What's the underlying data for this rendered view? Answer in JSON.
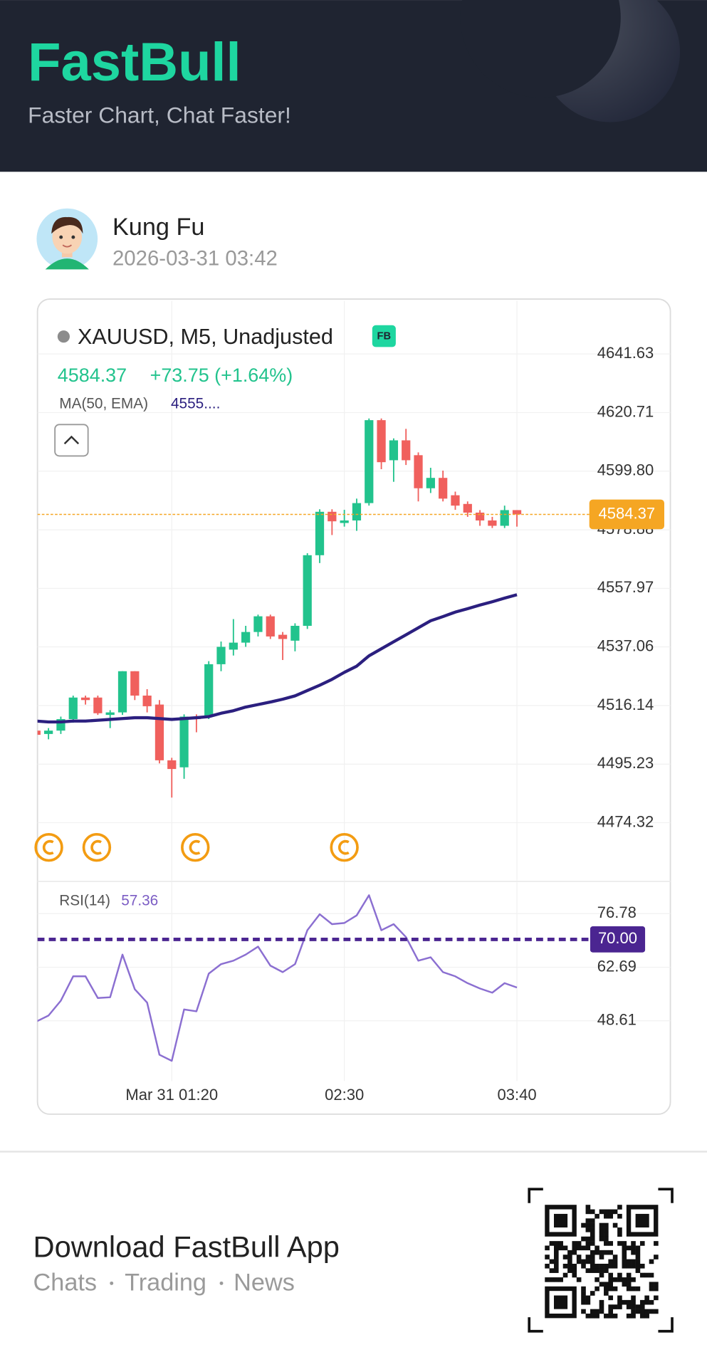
{
  "header": {
    "brand": "FastBull",
    "tagline": "Faster Chart, Chat Faster!"
  },
  "post": {
    "author": "Kung Fu",
    "time": "2026-03-31 03:42"
  },
  "chart_data": [
    {
      "type": "candlestick",
      "title": "XAUUSD, M5, Unadjusted",
      "badge": "FB",
      "last_price": 4584.37,
      "change": "+73.75 (+1.64%)",
      "up_color": "#22c38d",
      "down_color": "#f0605d",
      "price_line_color": "#f5a623",
      "open": [
        4507.2,
        4506.0,
        4507.2,
        4511.3,
        4519.0,
        4519.0,
        4512.8,
        4513.7,
        4528.4,
        4519.7,
        4516.5,
        4496.6,
        4494.1,
        4512.2,
        4512.2,
        4530.9,
        4536.1,
        4538.6,
        4542.4,
        4548.0,
        4541.4,
        4539.3,
        4544.6,
        4569.8,
        4585.3,
        4581.3,
        4582.2,
        4588.4,
        4618.0,
        4603.7,
        4610.8,
        4605.5,
        4593.7,
        4597.4,
        4591.2,
        4588.1,
        4585.0,
        4582.2,
        4580.3,
        4585.9
      ],
      "high": [
        4508.1,
        4508.1,
        4512.2,
        4519.7,
        4519.7,
        4519.7,
        4514.5,
        4528.4,
        4528.4,
        4522.0,
        4518.1,
        4497.5,
        4513.0,
        4513.0,
        4532.0,
        4539.0,
        4547.0,
        4544.6,
        4548.6,
        4548.6,
        4542.4,
        4545.5,
        4570.5,
        4586.2,
        4586.2,
        4586.0,
        4590.0,
        4618.6,
        4618.6,
        4611.5,
        4614.9,
        4606.5,
        4601.0,
        4600.0,
        4592.5,
        4589.0,
        4585.9,
        4583.5,
        4587.5,
        4585.9
      ],
      "low": [
        4504.1,
        4504.1,
        4506.0,
        4510.0,
        4516.5,
        4512.8,
        4508.1,
        4512.8,
        4518.1,
        4513.7,
        4495.5,
        4483.3,
        4490.0,
        4506.6,
        4511.3,
        4528.4,
        4534.0,
        4537.1,
        4540.8,
        4539.9,
        4532.4,
        4535.5,
        4543.5,
        4567.0,
        4577.0,
        4580.0,
        4578.5,
        4587.5,
        4600.5,
        4596.0,
        4602.0,
        4589.0,
        4592.0,
        4589.0,
        4586.0,
        4583.5,
        4580.3,
        4579.5,
        4579.5,
        4580.0
      ],
      "close": [
        4505.7,
        4507.2,
        4511.3,
        4519.0,
        4518.1,
        4513.4,
        4513.7,
        4528.4,
        4519.7,
        4515.9,
        4496.6,
        4493.5,
        4512.2,
        4511.3,
        4530.9,
        4537.1,
        4538.6,
        4542.4,
        4548.0,
        4540.8,
        4539.9,
        4544.6,
        4569.8,
        4585.3,
        4581.9,
        4582.2,
        4588.4,
        4618.0,
        4603.0,
        4610.8,
        4603.7,
        4593.7,
        4597.4,
        4590.0,
        4587.5,
        4585.0,
        4582.2,
        4580.3,
        4585.9,
        4584.37
      ],
      "overlay": {
        "name": "MA(50, EMA)",
        "value_label": "4555....",
        "color": "#2b1f7f",
        "values": [
          4510.6,
          4510.3,
          4510.3,
          4510.6,
          4510.6,
          4510.9,
          4511.2,
          4511.5,
          4511.8,
          4511.8,
          4511.5,
          4511.2,
          4511.5,
          4511.8,
          4512.2,
          4513.4,
          4514.3,
          4515.6,
          4516.5,
          4517.4,
          4518.4,
          4519.6,
          4521.5,
          4523.4,
          4525.5,
          4528.0,
          4530.2,
          4533.9,
          4536.4,
          4538.9,
          4541.4,
          4543.9,
          4546.4,
          4547.9,
          4549.5,
          4550.7,
          4552.0,
          4553.2,
          4554.5,
          4555.7
        ]
      },
      "ylim": [
        4453.7,
        4660.6
      ],
      "yticks": [
        4641.63,
        4620.71,
        {
          "value": 4599.8,
          "label": "4599.80"
        },
        4578.88,
        4557.97,
        4537.06,
        4516.14,
        4495.23,
        4474.32
      ],
      "grid": true
    },
    {
      "type": "line",
      "name": "RSI(14)",
      "color": "#8b6fd1",
      "categories": [
        null,
        null,
        null,
        null,
        null,
        null,
        null,
        null,
        null,
        null,
        null,
        "Mar 31 01:20",
        null,
        null,
        null,
        null,
        null,
        null,
        null,
        null,
        null,
        null,
        null,
        null,
        null,
        "02:30",
        null,
        null,
        null,
        null,
        null,
        null,
        null,
        null,
        null,
        null,
        null,
        null,
        null,
        "03:40"
      ],
      "values": [
        48.4,
        50.0,
        53.9,
        60.3,
        60.3,
        54.6,
        54.8,
        66.0,
        56.9,
        53.4,
        39.7,
        38.1,
        51.6,
        51.1,
        61.0,
        63.5,
        64.4,
        66.0,
        68.1,
        63.1,
        61.4,
        63.5,
        72.4,
        76.6,
        74.0,
        74.3,
        76.3,
        81.6,
        72.4,
        74.0,
        70.6,
        64.4,
        65.3,
        61.4,
        60.3,
        58.5,
        57.1,
        56.0,
        58.5,
        57.36
      ],
      "reference": {
        "value": 70,
        "label": "70.00",
        "color": "#4b2591"
      },
      "ylim": [
        32.8,
        85.0
      ],
      "yticks": [
        76.78,
        62.69,
        48.61
      ],
      "grid": true
    }
  ],
  "footer": {
    "title": "Download FastBull App",
    "links": [
      "Chats",
      "Trading",
      "News"
    ]
  }
}
